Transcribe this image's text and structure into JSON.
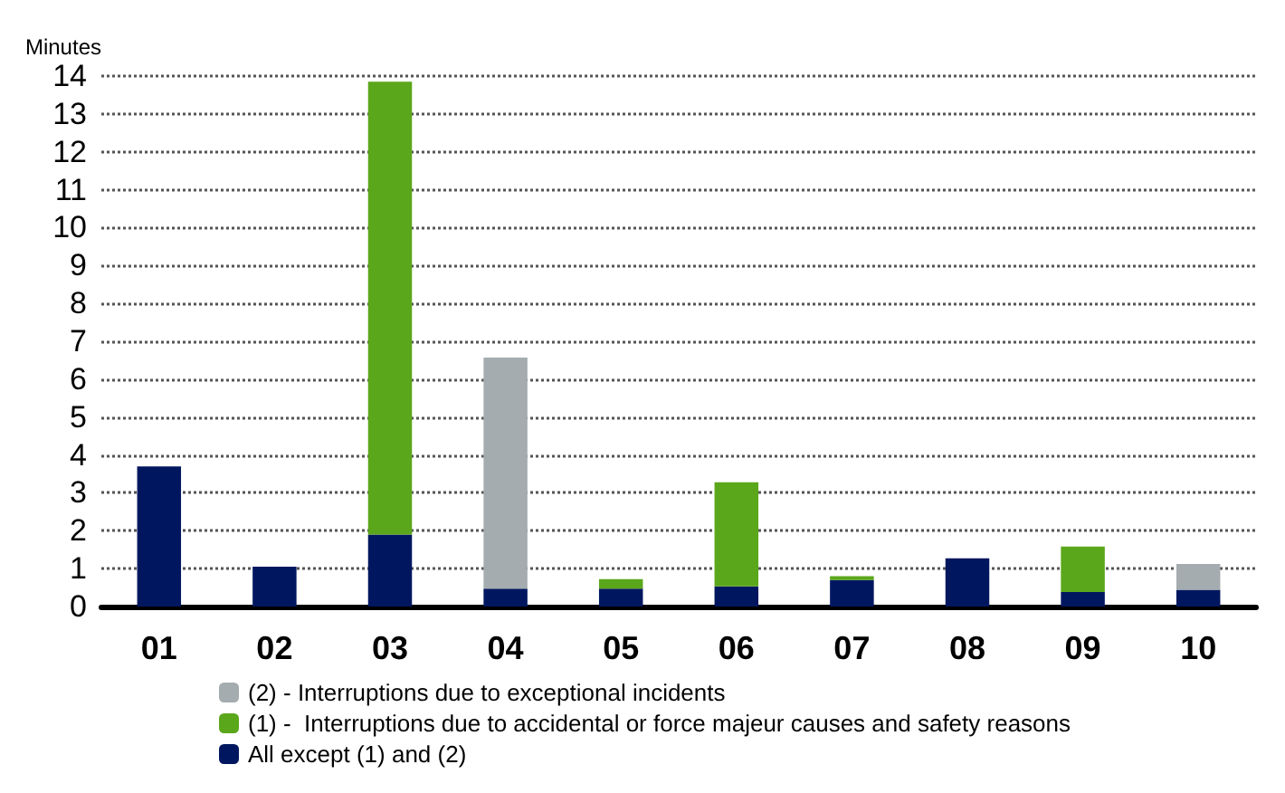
{
  "chart_data": {
    "type": "bar",
    "ylabel": "Minutes",
    "stacked": true,
    "grid": "y",
    "legend": "bottom",
    "categories": [
      "01",
      "02",
      "03",
      "04",
      "05",
      "06",
      "07",
      "08",
      "09",
      "10"
    ],
    "series": [
      {
        "name": "All except (1) and (2)",
        "color": "#00175f",
        "values": [
          3.7,
          1.05,
          1.9,
          0.47,
          0.47,
          0.53,
          0.7,
          1.27,
          0.38,
          0.44
        ]
      },
      {
        "name": "(1) -  Interruptions due to accidental or force majeur causes and safety reasons",
        "color": "#5ba71b",
        "values": [
          0,
          0,
          11.95,
          0,
          0.25,
          2.75,
          0.1,
          0,
          1.2,
          0
        ]
      },
      {
        "name": "(2) - Interruptions due to exceptional incidents",
        "color": "#a5acaf",
        "values": [
          0,
          0,
          0,
          6.1,
          0,
          0,
          0,
          0,
          0,
          0.68
        ]
      }
    ],
    "ylim": [
      0,
      14
    ],
    "yticks": [
      0,
      1,
      2,
      3,
      4,
      5,
      6,
      7,
      8,
      9,
      10,
      11,
      12,
      13,
      14
    ]
  }
}
